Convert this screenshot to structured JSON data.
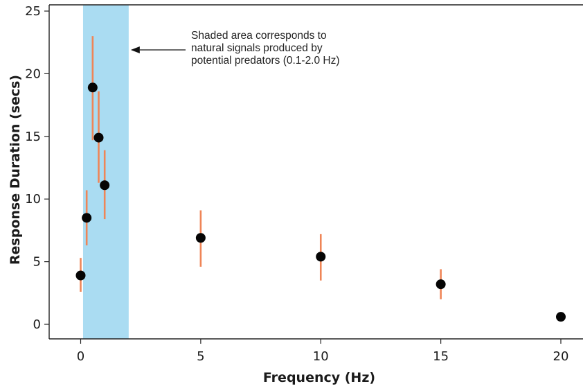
{
  "chart_data": {
    "type": "scatter",
    "title": "",
    "xlabel": "Frequency (Hz)",
    "ylabel": "Response Duration (secs)",
    "xlim": [
      -2,
      21
    ],
    "ylim": [
      -1.2,
      25.5
    ],
    "x_ticks": [
      0,
      5,
      10,
      15,
      20
    ],
    "y_ticks": [
      0,
      5,
      10,
      15,
      20,
      25
    ],
    "grid": false,
    "legend": "none",
    "shaded_region": {
      "x_start": 0.1,
      "x_end": 2.0,
      "color": "#aadcf2"
    },
    "series": [
      {
        "points": [
          {
            "x": 0.0,
            "y": 3.9,
            "err_low": 2.6,
            "err_high": 5.3
          },
          {
            "x": 0.25,
            "y": 8.5,
            "err_low": 6.3,
            "err_high": 10.7
          },
          {
            "x": 0.5,
            "y": 18.9,
            "err_low": 14.7,
            "err_high": 23.0
          },
          {
            "x": 0.75,
            "y": 14.9,
            "err_low": 11.3,
            "err_high": 18.6
          },
          {
            "x": 1.0,
            "y": 11.1,
            "err_low": 8.4,
            "err_high": 13.9
          },
          {
            "x": 5.0,
            "y": 6.9,
            "err_low": 4.6,
            "err_high": 9.1
          },
          {
            "x": 10.0,
            "y": 5.4,
            "err_low": 3.5,
            "err_high": 7.2
          },
          {
            "x": 15.0,
            "y": 3.2,
            "err_low": 2.0,
            "err_high": 4.4
          },
          {
            "x": 20.0,
            "y": 0.6,
            "err_low": 0.6,
            "err_high": 0.6
          }
        ]
      }
    ],
    "annotation": {
      "lines": [
        "Shaded area corresponds to",
        "natural signals produced by",
        "potential predators (0.1-2.0 Hz)"
      ]
    },
    "colors": {
      "marker": "#050505",
      "error_bar": "#ef8557",
      "axis": "#222222"
    }
  }
}
